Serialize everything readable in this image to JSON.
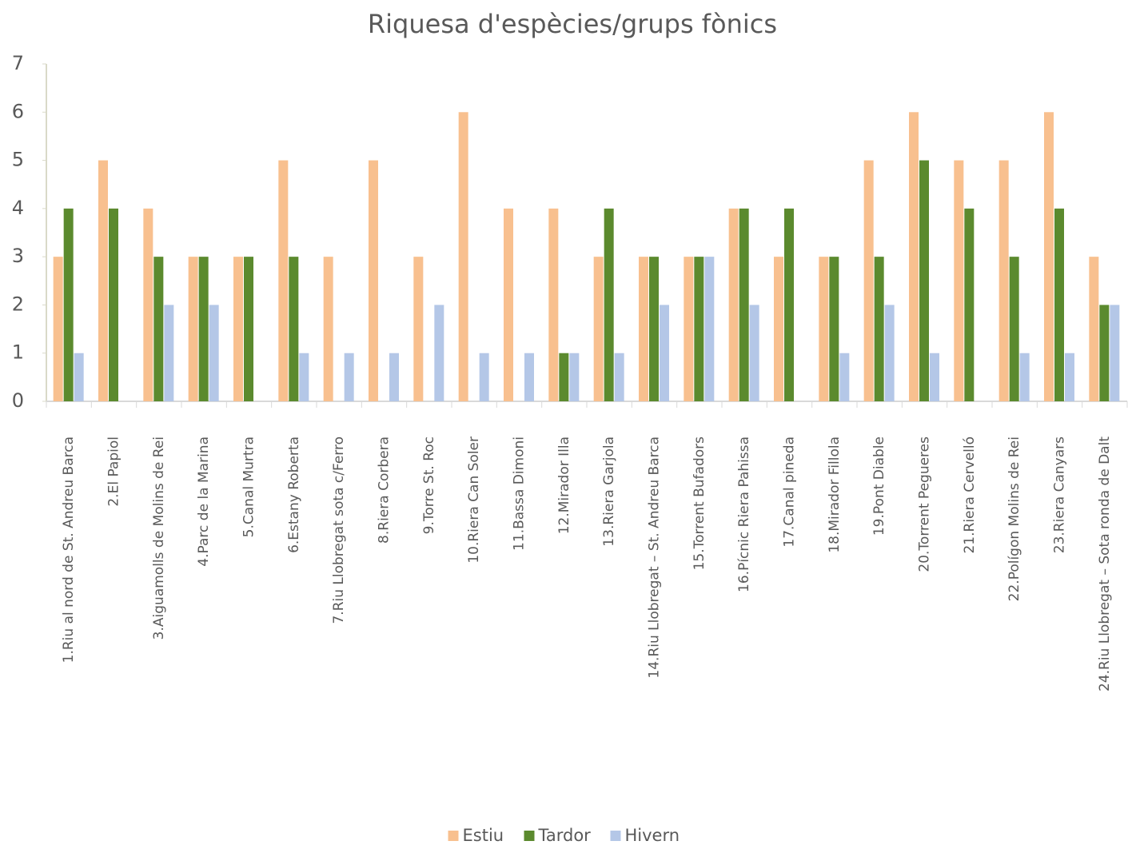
{
  "chart_data": {
    "type": "bar",
    "title": "Riquesa d'espècies/grups fònics",
    "categories": [
      "1.Riu al nord de St. Andreu Barca",
      "2.El Papiol",
      "3.Aiguamolls de Molins de Rei",
      "4.Parc de la Marina",
      "5.Canal Murtra",
      "6.Estany Roberta",
      "7.Riu Llobregat sota c/Ferro",
      "8.Riera Corbera",
      "9.Torre St. Roc",
      "10.Riera Can Soler",
      "11.Bassa Dimoni",
      "12.Mirador Illa",
      "13.Riera Garjola",
      "14.Riu Llobregat – St. Andreu Barca",
      "15.Torrent Bufadors",
      "16.Pícnic Riera Pahissa",
      "17.Canal pineda",
      "18.Mirador Fillola",
      "19.Pont Diable",
      "20.Torrent Pegueres",
      "21.Riera Cervelló",
      "22.Polígon Molins de Rei",
      "23.Riera Canyars",
      "24.Riu Llobregat – Sota ronda de Dalt"
    ],
    "series": [
      {
        "name": "Estiu",
        "color": "#f8c08f",
        "values": [
          3,
          5,
          4,
          3,
          3,
          5,
          3,
          5,
          3,
          6,
          4,
          4,
          3,
          3,
          3,
          4,
          3,
          3,
          5,
          6,
          5,
          5,
          6,
          3
        ]
      },
      {
        "name": "Tardor",
        "color": "#5b8a2e",
        "values": [
          4,
          4,
          3,
          3,
          3,
          3,
          0,
          0,
          0,
          0,
          0,
          1,
          4,
          3,
          3,
          4,
          4,
          3,
          3,
          5,
          4,
          3,
          4,
          2
        ]
      },
      {
        "name": "Hivern",
        "color": "#b4c7e7",
        "values": [
          1,
          0,
          2,
          2,
          0,
          1,
          1,
          1,
          2,
          1,
          1,
          1,
          1,
          2,
          3,
          2,
          0,
          1,
          2,
          1,
          0,
          1,
          1,
          2
        ]
      }
    ],
    "ylim": [
      0,
      7
    ],
    "yticks": [
      0,
      1,
      2,
      3,
      4,
      5,
      6,
      7
    ],
    "legend": "bottom"
  }
}
